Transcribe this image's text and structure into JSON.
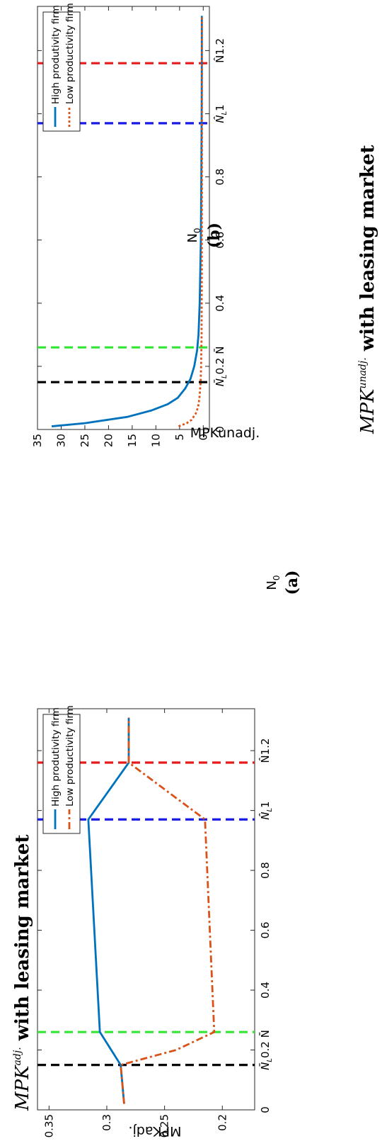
{
  "chart_data": [
    {
      "type": "line",
      "panel_label": "(a)",
      "title": {
        "main": "MPK",
        "sup": "adj.",
        "rest": " with leasing market"
      },
      "xlabel": {
        "main": "N",
        "sub": "0"
      },
      "ylabel": "MPKadj.",
      "xlim": [
        0.0,
        1.34
      ],
      "ylim": [
        0.172,
        0.36
      ],
      "yticks": [
        0.2,
        0.25,
        0.3,
        0.35
      ],
      "ytick_labels": [
        "0.2",
        "0.25",
        "0.3",
        "0.35"
      ],
      "xticks": [
        0,
        0.2,
        0.4,
        0.6,
        0.8,
        1.0,
        1.2
      ],
      "xtick_labels": [
        "0",
        "N̄_L0.2 N̄",
        "0.4",
        "0.6",
        "0.8",
        "N̂_L1",
        "N̂1.2"
      ],
      "grid": false,
      "legend_position": "top-right",
      "vlines": [
        {
          "x": 0.15,
          "color": "#000000"
        },
        {
          "x": 0.26,
          "color": "#33e633"
        },
        {
          "x": 0.97,
          "color": "#1a1ae6"
        },
        {
          "x": 1.16,
          "color": "#e61a1a"
        }
      ],
      "series": [
        {
          "name": "High produtivity firm",
          "color": "#0072BD",
          "style": "solid",
          "x": [
            0.02,
            0.15,
            0.26,
            0.97,
            1.16,
            1.31
          ],
          "y": [
            0.285,
            0.288,
            0.306,
            0.316,
            0.281,
            0.281
          ]
        },
        {
          "name": "Low productivity firm",
          "color": "#D95319",
          "style": "dashdot",
          "x": [
            0.02,
            0.15,
            0.2,
            0.26,
            0.97,
            1.16,
            1.31
          ],
          "y": [
            0.285,
            0.288,
            0.24,
            0.207,
            0.215,
            0.281,
            0.281
          ]
        }
      ]
    },
    {
      "type": "line",
      "panel_label": "(b)",
      "title": {
        "main": "MPK",
        "sup": "unadj.",
        "rest": " with leasing market"
      },
      "xlabel": {
        "main": "N",
        "sub": "0"
      },
      "ylabel": "MPKunadj.",
      "xlim": [
        0.0,
        1.34
      ],
      "ylim": [
        -1.3,
        35.0
      ],
      "yticks": [
        0,
        5,
        10,
        15,
        20,
        25,
        30,
        35
      ],
      "ytick_labels": [
        "0",
        "5",
        "10",
        "15",
        "20",
        "25",
        "30",
        "35"
      ],
      "xticks": [
        0,
        0.2,
        0.4,
        0.6,
        0.8,
        1.0,
        1.2
      ],
      "xtick_labels": [
        "0",
        "N̄_L0.2 N̄",
        "0.4",
        "0.6",
        "0.8",
        "N̂_L1",
        "N̂1.2"
      ],
      "grid": false,
      "legend_position": "top-right",
      "vlines": [
        {
          "x": 0.15,
          "color": "#000000"
        },
        {
          "x": 0.26,
          "color": "#33e633"
        },
        {
          "x": 0.97,
          "color": "#1a1ae6"
        },
        {
          "x": 1.16,
          "color": "#e61a1a"
        }
      ],
      "series": [
        {
          "name": "High produtivity firm",
          "color": "#0072BD",
          "style": "solid",
          "x": [
            0.01,
            0.02,
            0.04,
            0.06,
            0.08,
            0.1,
            0.13,
            0.16,
            0.2,
            0.25,
            0.3,
            0.4,
            0.6,
            0.8,
            1.0,
            1.2,
            1.31
          ],
          "y": [
            32,
            25,
            16,
            11,
            7.5,
            5.4,
            3.8,
            2.7,
            1.9,
            1.3,
            1.0,
            0.75,
            0.5,
            0.4,
            0.33,
            0.3,
            0.3
          ]
        },
        {
          "name": "Low productivity firm",
          "color": "#D95319",
          "style": "dotted",
          "x": [
            0.01,
            0.02,
            0.03,
            0.05,
            0.07,
            0.1,
            0.15,
            0.2,
            0.3,
            0.5,
            0.8,
            1.0,
            1.31
          ],
          "y": [
            5.2,
            3.5,
            2.5,
            1.6,
            1.1,
            0.8,
            0.55,
            0.45,
            0.35,
            0.3,
            0.28,
            0.28,
            0.28
          ]
        }
      ]
    }
  ]
}
